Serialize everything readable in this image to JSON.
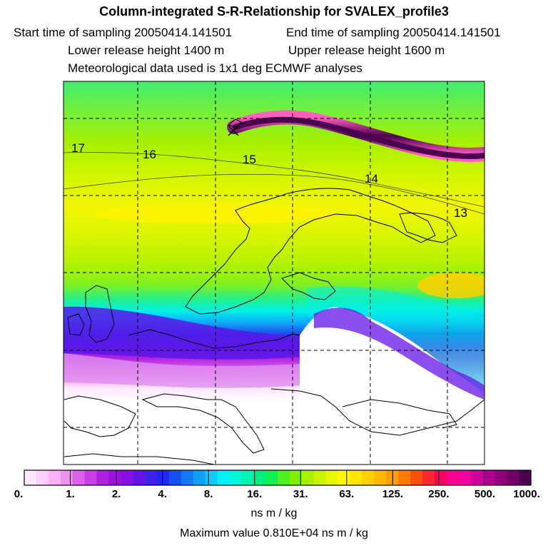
{
  "header": {
    "title": "Column-integrated S-R-Relationship for SVALEX_profile3",
    "start_time": "Start time of sampling 20050414.141501",
    "end_time": "End time of sampling 20050414.141501",
    "lower_height": "Lower release height 1400 m",
    "upper_height": "Upper release height 1600 m",
    "met_data": "Meteorological data used is 1x1 deg ECMWF analyses"
  },
  "map": {
    "contour_labels": [
      "17",
      "16",
      "15",
      "14",
      "13"
    ]
  },
  "colorbar": {
    "colors": [
      "#ffe8ff",
      "#ffd0ff",
      "#fbb2fb",
      "#f090f0",
      "#dc60e8",
      "#c840e4",
      "#b020e0",
      "#9c10e0",
      "#8810e4",
      "#6414e8",
      "#4020ec",
      "#1e28f0",
      "#1450f4",
      "#1278f8",
      "#10a0fa",
      "#10c8fc",
      "#00f0f8",
      "#00f8d8",
      "#00f4b0",
      "#00f080",
      "#10f050",
      "#50f020",
      "#80f000",
      "#a8f000",
      "#c8f400",
      "#e8f800",
      "#fffa00",
      "#ffe600",
      "#ffd000",
      "#ffb800",
      "#ff9c00",
      "#ff7c00",
      "#ff5010",
      "#ff2830",
      "#ff0060",
      "#ff0090",
      "#f000a0",
      "#d000a0",
      "#b00090",
      "#90007c",
      "#700068",
      "#4c0050"
    ],
    "tick_labels": [
      "0.",
      "1.",
      "2.",
      "4.",
      "8.",
      "16.",
      "31.",
      "63.",
      "125.",
      "250.",
      "500.",
      "1000."
    ],
    "units": "ns m / kg"
  },
  "footer": {
    "max_value": "Maximum value  0.810E+04 ns m / kg"
  }
}
